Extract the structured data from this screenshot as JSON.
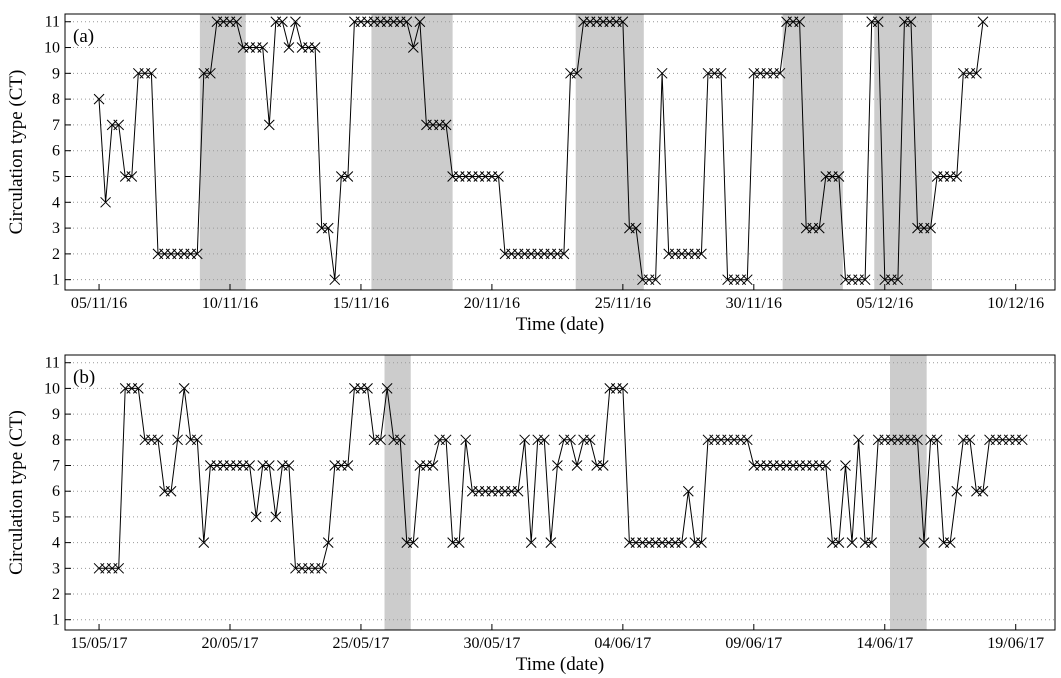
{
  "chart_data": [
    {
      "type": "line",
      "panel_label": "(a)",
      "x_label": "Time (date)",
      "y_label": "Circulation type (CT)",
      "x": [
        0,
        0.25,
        0.5,
        0.75,
        1,
        1.25,
        1.5,
        1.75,
        2,
        2.25,
        2.5,
        2.75,
        3,
        3.25,
        3.5,
        3.75,
        4,
        4.25,
        4.5,
        4.75,
        5,
        5.25,
        5.5,
        5.75,
        6,
        6.25,
        6.5,
        6.75,
        7,
        7.25,
        7.5,
        7.75,
        8,
        8.25,
        8.5,
        8.75,
        9,
        9.25,
        9.5,
        9.75,
        10,
        10.25,
        10.5,
        10.75,
        11,
        11.25,
        11.5,
        11.75,
        12,
        12.25,
        12.5,
        12.75,
        13,
        13.25,
        13.5,
        13.75,
        14,
        14.25,
        14.5,
        14.75,
        15,
        15.25,
        15.5,
        15.75,
        16,
        16.25,
        16.5,
        16.75,
        17,
        17.25,
        17.5,
        17.75,
        18,
        18.25,
        18.5,
        18.75,
        19,
        19.25,
        19.5,
        19.75,
        20,
        20.25,
        20.5,
        20.75,
        21,
        21.25,
        21.5,
        21.75,
        22,
        22.25,
        22.5,
        22.75,
        23,
        23.25,
        23.5,
        23.75,
        24,
        24.25,
        24.5,
        24.75,
        25,
        25.25,
        25.5,
        25.75,
        26,
        26.25,
        26.5,
        26.75,
        27,
        27.25,
        27.5,
        27.75,
        28,
        28.25,
        28.5,
        28.75,
        29,
        29.25,
        29.5,
        29.75,
        30,
        30.25,
        30.5,
        30.75,
        31,
        31.25,
        31.5,
        31.75,
        32,
        32.25,
        32.5,
        32.75,
        33,
        33.25,
        33.5,
        33.75
      ],
      "series": [
        {
          "color": "#000000",
          "values": [
            8,
            4,
            7,
            7,
            5,
            5,
            9,
            9,
            9,
            2,
            2,
            2,
            2,
            2,
            2,
            2,
            9,
            9,
            11,
            11,
            11,
            11,
            10,
            10,
            10,
            10,
            7,
            11,
            11,
            10,
            11,
            10,
            10,
            10,
            3,
            3,
            1,
            5,
            5,
            11,
            11,
            11,
            11,
            11,
            11,
            11,
            11,
            11,
            10,
            11,
            7,
            7,
            7,
            7,
            5,
            5,
            5,
            5,
            5,
            5,
            5,
            5,
            2,
            2,
            2,
            2,
            2,
            2,
            2,
            2,
            2,
            2,
            9,
            9,
            11,
            11,
            11,
            11,
            11,
            11,
            11,
            3,
            3,
            1,
            1,
            1,
            9,
            2,
            2,
            2,
            2,
            2,
            2,
            9,
            9,
            9,
            1,
            1,
            1,
            1,
            9,
            9,
            9,
            9,
            9,
            11,
            11,
            11,
            3,
            3,
            3,
            5,
            5,
            5,
            1,
            1,
            1,
            1,
            11,
            11,
            1,
            1,
            1,
            11,
            11,
            3,
            3,
            3,
            5,
            5,
            5,
            5,
            9,
            9,
            9,
            11
          ]
        }
      ],
      "shaded": [
        [
          3.85,
          5.6
        ],
        [
          10.4,
          13.5
        ],
        [
          18.2,
          20.8
        ],
        [
          26.1,
          28.4
        ],
        [
          29.6,
          31.8
        ]
      ],
      "xlim": [
        -1.3,
        36.5
      ],
      "xticks": [
        {
          "value": 0,
          "label": "05/11/16"
        },
        {
          "value": 5,
          "label": "10/11/16"
        },
        {
          "value": 10,
          "label": "15/11/16"
        },
        {
          "value": 15,
          "label": "20/11/16"
        },
        {
          "value": 20,
          "label": "25/11/16"
        },
        {
          "value": 25,
          "label": "30/11/16"
        },
        {
          "value": 30,
          "label": "05/12/16"
        },
        {
          "value": 35,
          "label": "10/12/16"
        }
      ],
      "ylim": [
        0.6,
        11.3
      ],
      "yticks": [
        1,
        2,
        3,
        4,
        5,
        6,
        7,
        8,
        9,
        10,
        11
      ],
      "grid": true
    },
    {
      "type": "line",
      "panel_label": "(b)",
      "x_label": "Time (date)",
      "y_label": "Circulation type (CT)",
      "x": [
        0,
        0.25,
        0.5,
        0.75,
        1,
        1.25,
        1.5,
        1.75,
        2,
        2.25,
        2.5,
        2.75,
        3,
        3.25,
        3.5,
        3.75,
        4,
        4.25,
        4.5,
        4.75,
        5,
        5.25,
        5.5,
        5.75,
        6,
        6.25,
        6.5,
        6.75,
        7,
        7.25,
        7.5,
        7.75,
        8,
        8.25,
        8.5,
        8.75,
        9,
        9.25,
        9.5,
        9.75,
        10,
        10.25,
        10.5,
        10.75,
        11,
        11.25,
        11.5,
        11.75,
        12,
        12.25,
        12.5,
        12.75,
        13,
        13.25,
        13.5,
        13.75,
        14,
        14.25,
        14.5,
        14.75,
        15,
        15.25,
        15.5,
        15.75,
        16,
        16.25,
        16.5,
        16.75,
        17,
        17.25,
        17.5,
        17.75,
        18,
        18.25,
        18.5,
        18.75,
        19,
        19.25,
        19.5,
        19.75,
        20,
        20.25,
        20.5,
        20.75,
        21,
        21.25,
        21.5,
        21.75,
        22,
        22.25,
        22.5,
        22.75,
        23,
        23.25,
        23.5,
        23.75,
        24,
        24.25,
        24.5,
        24.75,
        25,
        25.25,
        25.5,
        25.75,
        26,
        26.25,
        26.5,
        26.75,
        27,
        27.25,
        27.5,
        27.75,
        28,
        28.25,
        28.5,
        28.75,
        29,
        29.25,
        29.5,
        29.75,
        30,
        30.25,
        30.5,
        30.75,
        31,
        31.25,
        31.5,
        31.75,
        32,
        32.25,
        32.5,
        32.75,
        33,
        33.25,
        33.5,
        33.75,
        34,
        34.25,
        34.5,
        34.75,
        35,
        35.25
      ],
      "series": [
        {
          "color": "#000000",
          "values": [
            3,
            3,
            3,
            3,
            10,
            10,
            10,
            8,
            8,
            8,
            6,
            6,
            8,
            10,
            8,
            8,
            4,
            7,
            7,
            7,
            7,
            7,
            7,
            7,
            5,
            7,
            7,
            5,
            7,
            7,
            3,
            3,
            3,
            3,
            3,
            4,
            7,
            7,
            7,
            10,
            10,
            10,
            8,
            8,
            10,
            8,
            8,
            4,
            4,
            7,
            7,
            7,
            8,
            8,
            4,
            4,
            8,
            6,
            6,
            6,
            6,
            6,
            6,
            6,
            6,
            8,
            4,
            8,
            8,
            4,
            7,
            8,
            8,
            7,
            8,
            8,
            7,
            7,
            10,
            10,
            10,
            4,
            4,
            4,
            4,
            4,
            4,
            4,
            4,
            4,
            6,
            4,
            4,
            8,
            8,
            8,
            8,
            8,
            8,
            8,
            7,
            7,
            7,
            7,
            7,
            7,
            7,
            7,
            7,
            7,
            7,
            7,
            4,
            4,
            7,
            4,
            8,
            4,
            4,
            8,
            8,
            8,
            8,
            8,
            8,
            8,
            4,
            8,
            8,
            4,
            4,
            6,
            8,
            8,
            6,
            6,
            8,
            8,
            8,
            8,
            8,
            8
          ]
        }
      ],
      "shaded": [
        [
          10.9,
          11.9
        ],
        [
          30.2,
          31.6
        ]
      ],
      "xlim": [
        -1.3,
        36.5
      ],
      "xticks": [
        {
          "value": 0,
          "label": "15/05/17"
        },
        {
          "value": 5,
          "label": "20/05/17"
        },
        {
          "value": 10,
          "label": "25/05/17"
        },
        {
          "value": 15,
          "label": "30/05/17"
        },
        {
          "value": 20,
          "label": "04/06/17"
        },
        {
          "value": 25,
          "label": "09/06/17"
        },
        {
          "value": 30,
          "label": "14/06/17"
        },
        {
          "value": 35,
          "label": "19/06/17"
        }
      ],
      "ylim": [
        0.6,
        11.3
      ],
      "yticks": [
        1,
        2,
        3,
        4,
        5,
        6,
        7,
        8,
        9,
        10,
        11
      ],
      "grid": true
    }
  ]
}
